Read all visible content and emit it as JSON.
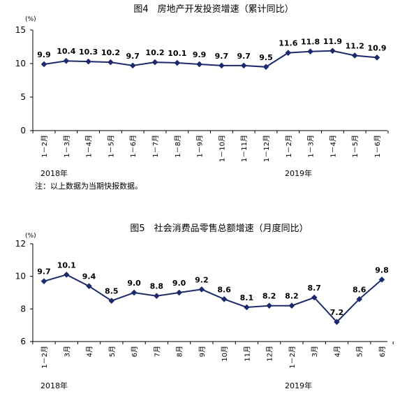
{
  "chart_data": [
    {
      "type": "line",
      "title": "图4　房地产开发投资增速（累计同比）",
      "unit_label": "(%)",
      "ylim": [
        0,
        15
      ],
      "yticks": [
        "0",
        "5",
        "10",
        "15"
      ],
      "categories": [
        "1－2月",
        "1－3月",
        "1－4月",
        "1－5月",
        "1－6月",
        "1－7月",
        "1－8月",
        "1－9月",
        "1－10月",
        "1－11月",
        "1－12月",
        "1－2月",
        "1－3月",
        "1－4月",
        "1－5月",
        "1－6月"
      ],
      "values": [
        9.9,
        10.4,
        10.3,
        10.2,
        9.7,
        10.2,
        10.1,
        9.9,
        9.7,
        9.7,
        9.5,
        11.6,
        11.8,
        11.9,
        11.2,
        10.9
      ],
      "data_labels": [
        "9.9",
        "10.4",
        "10.3",
        "10.2",
        "9.7",
        "10.2",
        "10.1",
        "9.9",
        "9.7",
        "9.7",
        "9.5",
        "11.6",
        "11.8",
        "11.9",
        "11.2",
        "10.9"
      ],
      "year_labels": [
        "2018年",
        "2019年"
      ],
      "note": "注：以上数据为当期快报数据。",
      "grid": false,
      "series_color": "#1c2a6b"
    },
    {
      "type": "line",
      "title": "图5　社会消费品零售总额增速（月度同比）",
      "unit_label": "(%)",
      "ylim": [
        6,
        12
      ],
      "yticks": [
        "6",
        "8",
        "10",
        "12"
      ],
      "categories": [
        "1－2月",
        "3月",
        "4月",
        "5月",
        "6月",
        "7月",
        "8月",
        "9月",
        "10月",
        "11月",
        "12月",
        "1－2月",
        "3月",
        "4月",
        "5月",
        "6月"
      ],
      "values": [
        9.7,
        10.1,
        9.4,
        8.5,
        9.0,
        8.8,
        9.0,
        9.2,
        8.6,
        8.1,
        8.2,
        8.2,
        8.7,
        7.2,
        8.6,
        9.8
      ],
      "data_labels": [
        "9.7",
        "10.1",
        "9.4",
        "8.5",
        "9.0",
        "8.8",
        "9.0",
        "9.2",
        "8.6",
        "8.1",
        "8.2",
        "8.2",
        "8.7",
        "7.2",
        "8.6",
        "9.8"
      ],
      "year_labels": [
        "2018年",
        "2019年"
      ],
      "grid": false,
      "series_color": "#1c2a6b"
    }
  ]
}
